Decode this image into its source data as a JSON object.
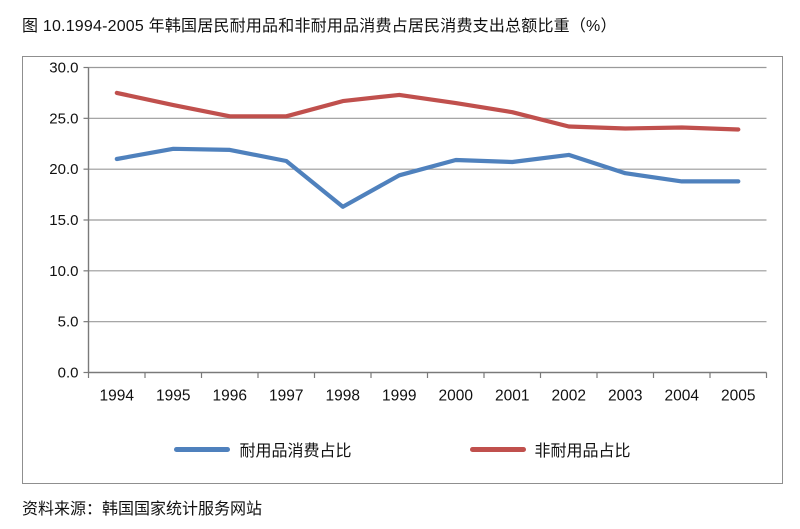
{
  "figure": {
    "title": "图 10.1994-2005 年韩国居民耐用品和非耐用品消费占居民消费支出总额比重（%）",
    "source": "资料来源：韩国国家统计服务网站"
  },
  "colors": {
    "durable_line": "#4F81BD",
    "nondurable_line": "#C0504D",
    "gridline": "#9a9a9a",
    "axis": "#7a7a7a",
    "frame_border": "#8f8f8f",
    "text": "#111111"
  },
  "chart_data": {
    "type": "line",
    "title": "",
    "xlabel": "",
    "ylabel": "",
    "categories": [
      "1994",
      "1995",
      "1996",
      "1997",
      "1998",
      "1999",
      "2000",
      "2001",
      "2002",
      "2003",
      "2004",
      "2005"
    ],
    "series": [
      {
        "name": "耐用品消费占比",
        "color": "#4F81BD",
        "values": [
          21.0,
          22.0,
          21.9,
          20.8,
          16.3,
          19.4,
          20.9,
          20.7,
          21.4,
          19.6,
          18.8,
          18.8
        ]
      },
      {
        "name": "非耐用品占比",
        "color": "#C0504D",
        "values": [
          27.5,
          26.3,
          25.2,
          25.2,
          26.7,
          27.3,
          26.5,
          25.6,
          24.2,
          24.0,
          24.1,
          23.9
        ]
      }
    ],
    "ylim": [
      0,
      30
    ],
    "y_tick_labels": [
      "0.0",
      "5.0",
      "10.0",
      "15.0",
      "20.0",
      "25.0",
      "30.0"
    ],
    "grid": true,
    "legend_position": "bottom"
  }
}
